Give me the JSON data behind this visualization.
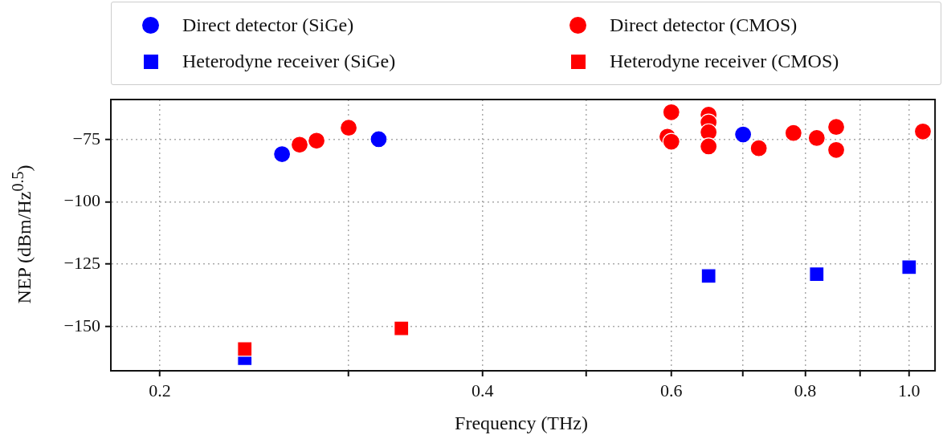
{
  "chart_data": {
    "type": "scatter",
    "xlabel": "Frequency (THz)",
    "ylabel": "NEP (dBm/Hz$^{0.5}$)",
    "log": "x",
    "grid": true,
    "legend": "top",
    "xlim": [
      0.18,
      1.05
    ],
    "ylim": [
      -167.7,
      -59
    ],
    "xticks": [
      0.2,
      {
        "value": 0.3,
        "label": null
      },
      0.4,
      {
        "value": 0.5,
        "label": null
      },
      0.6,
      {
        "value": 0.7,
        "label": null
      },
      0.8,
      {
        "value": 0.9,
        "label": null
      },
      {
        "value": 1,
        "label": "1.0"
      }
    ],
    "yticks": [
      {
        "value": -75,
        "label": "−75"
      },
      {
        "value": -100,
        "label": "−100"
      },
      {
        "value": -125,
        "label": "−125"
      },
      {
        "value": -150,
        "label": "−150"
      }
    ],
    "series": [
      {
        "name": "Direct detector (SiGe)",
        "color": "#0000ff",
        "marker": "circle",
        "x": [
          0.26,
          0.32,
          0.7
        ],
        "values": [
          -80.9,
          -74.9,
          -73.0
        ]
      },
      {
        "name": "Direct detector (CMOS)",
        "color": "#ff0000",
        "marker": "circle",
        "x": [
          0.27,
          0.28,
          0.3,
          0.595,
          0.6,
          0.6,
          0.65,
          0.65,
          0.65,
          0.65,
          0.724,
          0.78,
          0.82,
          0.855,
          0.855,
          1.03
        ],
        "values": [
          -77.1,
          -75.5,
          -70.3,
          -73.9,
          -64.1,
          -75.9,
          -65.1,
          -68.2,
          -72.1,
          -77.8,
          -78.5,
          -72.4,
          -74.4,
          -70.0,
          -79.2,
          -71.8
        ]
      },
      {
        "name": "Heterodyne receiver (SiGe)",
        "color": "#0000ff",
        "marker": "square",
        "x": [
          0.24,
          0.65,
          0.82,
          1.0
        ],
        "values": [
          -162.7,
          -129.7,
          -129.0,
          -126.2
        ]
      },
      {
        "name": "Heterodyne receiver (CMOS)",
        "color": "#ff0000",
        "marker": "square",
        "x": [
          0.24,
          0.336
        ],
        "values": [
          -159.0,
          -150.7
        ]
      }
    ]
  }
}
